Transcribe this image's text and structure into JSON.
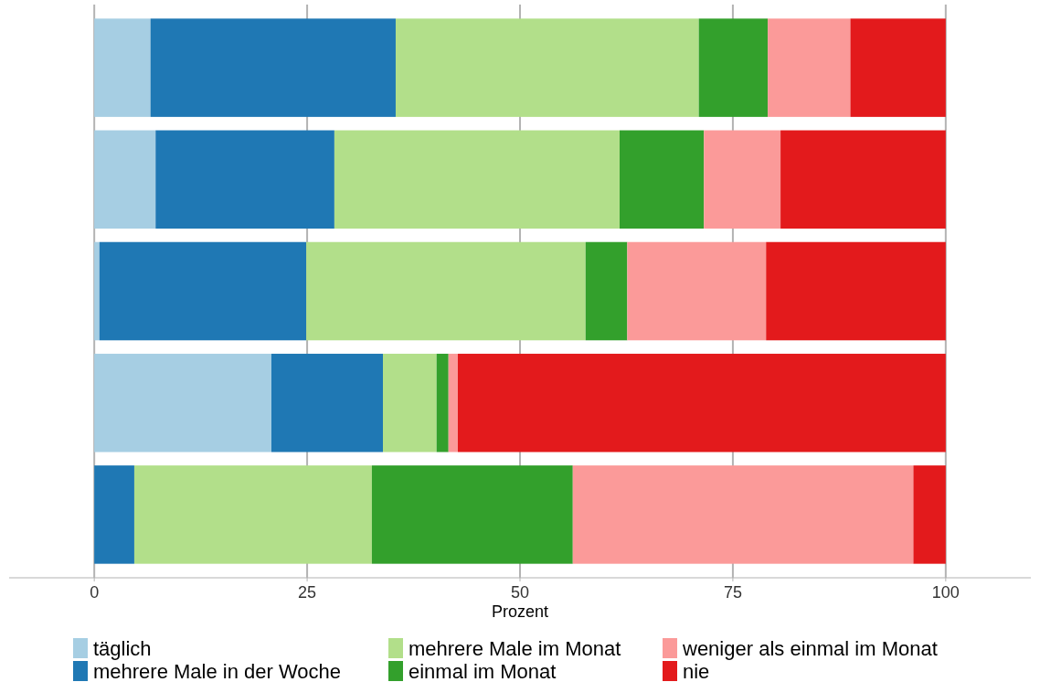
{
  "chart_data": {
    "type": "bar",
    "orientation": "horizontal",
    "stacked": true,
    "xlabel": "Prozent",
    "categories": [
      null,
      null,
      null,
      null,
      null
    ],
    "xlim": [
      -10,
      110
    ],
    "xticks": [
      0,
      25,
      50,
      75,
      100
    ],
    "grid": "x",
    "legend": "bottom",
    "series": [
      {
        "name": "täglich",
        "color": "#a6cee3",
        "values": [
          6.6,
          7.2,
          0.6,
          20.8,
          0
        ]
      },
      {
        "name": "mehrere Male in der Woche",
        "color": "#1f78b4",
        "values": [
          28.8,
          21.0,
          24.3,
          13.1,
          4.7
        ]
      },
      {
        "name": "mehrere Male im Monat",
        "color": "#b2df8a",
        "values": [
          35.6,
          33.5,
          32.8,
          6.3,
          27.9
        ]
      },
      {
        "name": "einmal im Monat",
        "color": "#33a02c",
        "values": [
          8.1,
          9.9,
          4.9,
          1.4,
          23.6
        ]
      },
      {
        "name": "weniger als einmal im Monat",
        "color": "#fb9a99",
        "values": [
          9.7,
          9.0,
          16.3,
          1.1,
          40.0
        ]
      },
      {
        "name": "nie",
        "color": "#e31a1c",
        "values": [
          11.2,
          19.4,
          21.1,
          57.3,
          3.8
        ]
      }
    ]
  }
}
